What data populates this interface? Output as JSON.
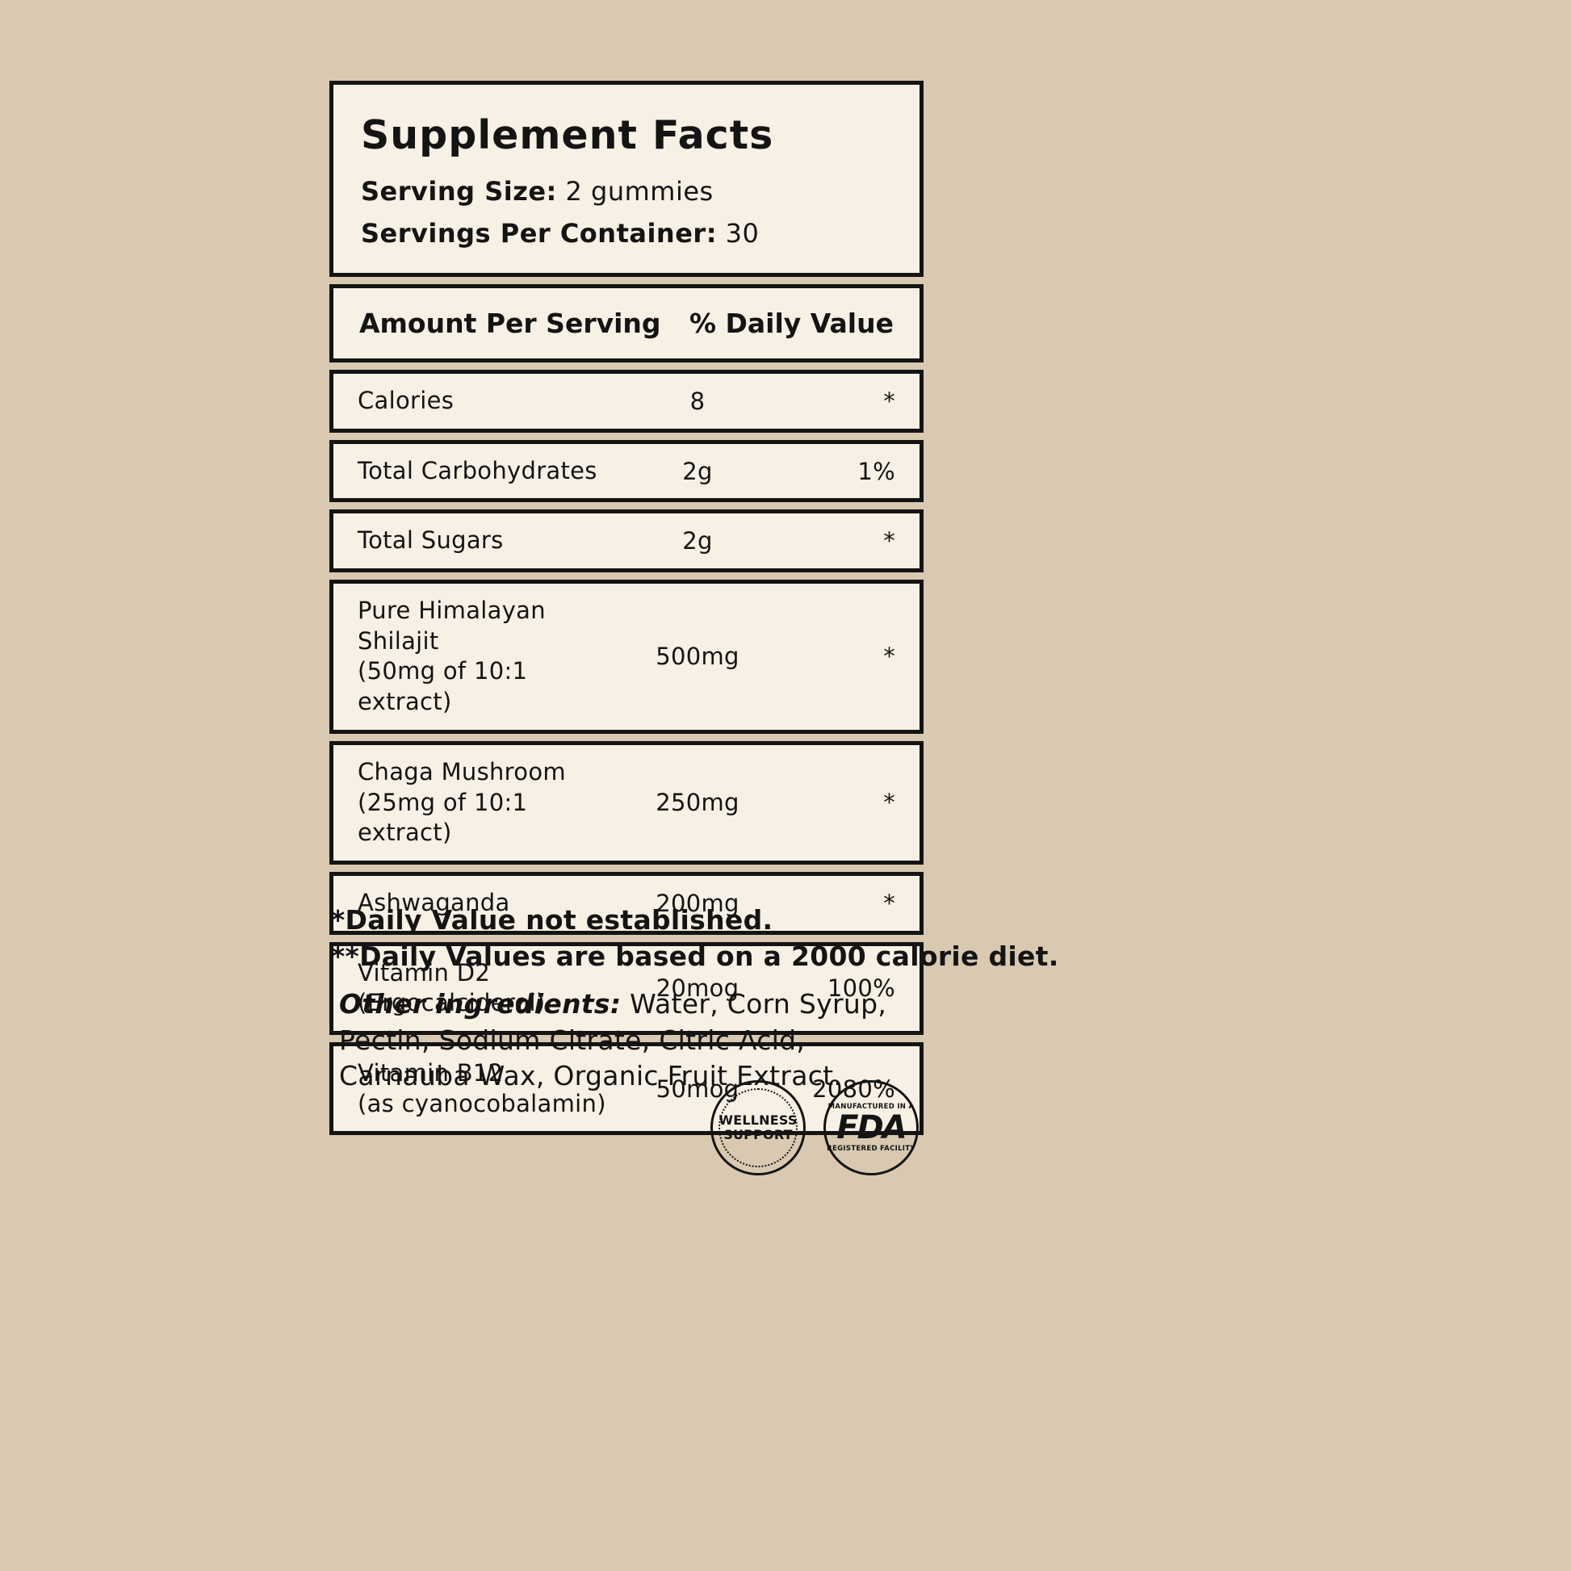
{
  "label": {
    "title": "Supplement Facts",
    "serving_size_label": "Serving Size:",
    "serving_size_value": "2 gummies",
    "servings_label": "Servings Per Container:",
    "servings_value": "30",
    "col_left": "Amount Per Serving",
    "col_right": "% Daily Value",
    "rows": [
      {
        "name": "Calories",
        "sub": "",
        "amount": "8",
        "dv": "*"
      },
      {
        "name": "Total Carbohydrates",
        "sub": "",
        "amount": "2g",
        "dv": "1%"
      },
      {
        "name": "Total Sugars",
        "sub": "",
        "amount": "2g",
        "dv": "*"
      },
      {
        "name": "Pure Himalayan Shilajit",
        "sub": "(50mg of 10:1 extract)",
        "amount": "500mg",
        "dv": "*"
      },
      {
        "name": "Chaga Mushroom",
        "sub": "(25mg of 10:1 extract)",
        "amount": "250mg",
        "dv": "*"
      },
      {
        "name": "Ashwaganda",
        "sub": "",
        "amount": "200mg",
        "dv": "*"
      },
      {
        "name": "Vitamin D2",
        "sub": "(Ergocalciderol)",
        "amount": "20mog",
        "dv": "100%"
      },
      {
        "name": "Vitamin B12",
        "sub": "(as cyanocobalamin)",
        "amount": "50mog",
        "dv": "2080%"
      }
    ],
    "footnote1": "*Daily Value not established.",
    "footnote2": "**Daily Values are based on a 2000 calorie diet.",
    "other_ingredients_label": "Other ingredients:",
    "other_ingredients_text": "Water, Corn Syrup, Pectin, Sodium Citrate, Citric Acid, Carnauba Wax, Organic Fruit Extract.",
    "badges": {
      "wellness_line1": "WELLNESS",
      "wellness_line2": "SUPPORT",
      "fda_top": "MANUFACTURED IN A",
      "fda_main": "FDA",
      "fda_bottom": "REGISTERED FACILITY"
    },
    "colors": {
      "background": "#d9c9b1",
      "panel": "#f7f0e4",
      "ink": "#141414"
    }
  }
}
